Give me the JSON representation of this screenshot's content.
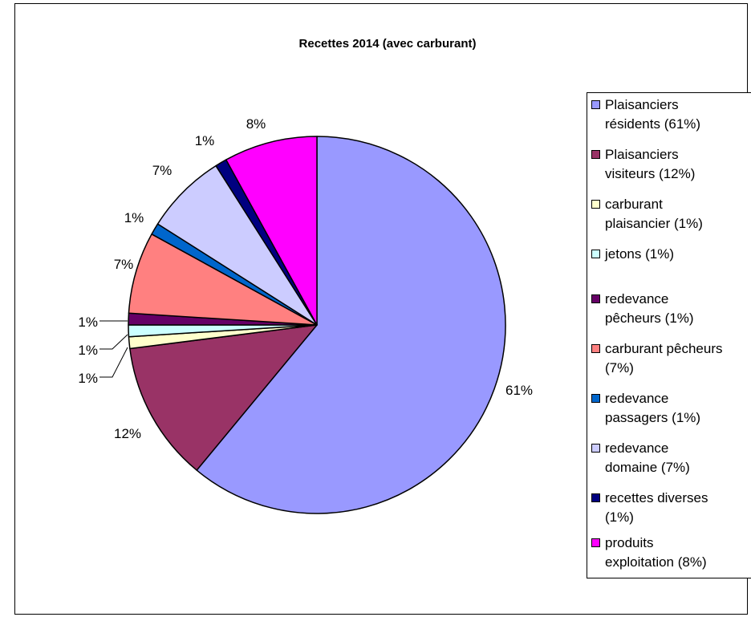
{
  "chart_data": {
    "type": "pie",
    "title": "Recettes 2014 (avec carburant)",
    "legend_position": "right",
    "slices": [
      {
        "legend": "Plaisanciers\nrésidents (61%)",
        "value": 61,
        "label": "61%",
        "color": "#9999FF"
      },
      {
        "legend": "Plaisanciers\nvisiteurs (12%)",
        "value": 12,
        "label": "12%",
        "color": "#993366"
      },
      {
        "legend": "carburant\nplaisancier (1%)",
        "value": 1,
        "label": "1%",
        "color": "#FFFFCC"
      },
      {
        "legend": "jetons (1%)",
        "value": 1,
        "label": "1%",
        "color": "#CCFFFF"
      },
      {
        "legend": "redevance\npêcheurs (1%)",
        "value": 1,
        "label": "1%",
        "color": "#660066"
      },
      {
        "legend": "carburant pêcheurs\n(7%)",
        "value": 7,
        "label": "7%",
        "color": "#FF8080"
      },
      {
        "legend": "redevance\npassagers (1%)",
        "value": 1,
        "label": "1%",
        "color": "#0066CC"
      },
      {
        "legend": "redevance\ndomaine (7%)",
        "value": 7,
        "label": "7%",
        "color": "#CCCCFF"
      },
      {
        "legend": "recettes diverses\n(1%)",
        "value": 1,
        "label": "1%",
        "color": "#000080"
      },
      {
        "legend": "produits\nexploitation (8%)",
        "value": 8,
        "label": "8%",
        "color": "#FF00FF"
      }
    ]
  }
}
